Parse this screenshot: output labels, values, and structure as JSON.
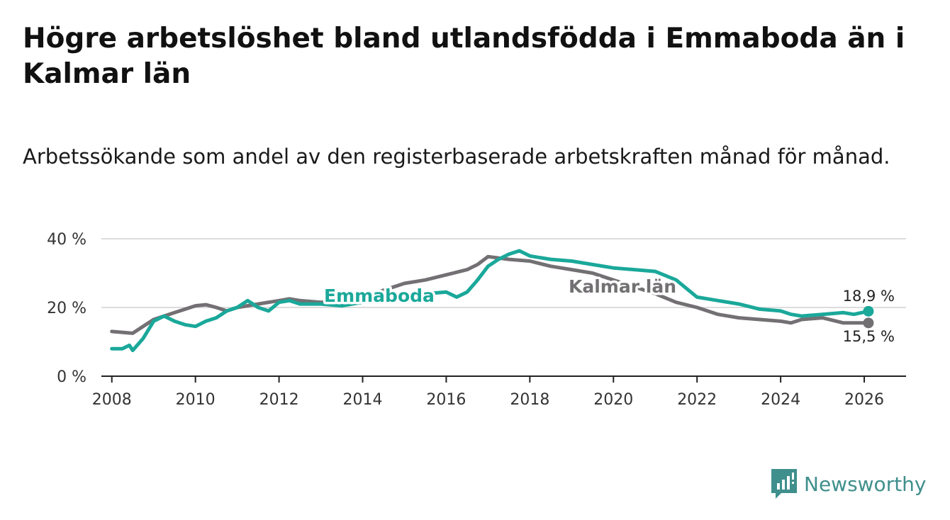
{
  "title": "Högre arbetslöshet bland utlandsfödda i Emmaboda än i Kalmar län",
  "subtitle": "Arbetssökande som andel av den registerbaserade arbetskraften månad för månad.",
  "brand": {
    "name": "Newsworthy",
    "icon": "newsworthy-logo-icon"
  },
  "colors": {
    "emmaboda": "#1aa89a",
    "kalmar": "#737073",
    "grid": "#dcdcdc",
    "axis": "#222222",
    "brand": "#3f8f8c"
  },
  "chart_data": {
    "type": "line",
    "title": "Högre arbetslöshet bland utlandsfödda i Emmaboda än i Kalmar län",
    "subtitle": "Arbetssökande som andel av den registerbaserade arbetskraften månad för månad.",
    "xlabel": "",
    "ylabel": "",
    "xlim": [
      2007.75,
      2027.0
    ],
    "ylim": [
      0,
      40
    ],
    "grid": true,
    "x_ticks": [
      2008,
      2010,
      2012,
      2014,
      2016,
      2018,
      2020,
      2022,
      2024,
      2026
    ],
    "x_tick_labels": [
      "2008",
      "2010",
      "2012",
      "2014",
      "2016",
      "2018",
      "2020",
      "2022",
      "2024",
      "2026"
    ],
    "y_ticks": [
      0,
      20,
      40
    ],
    "y_tick_labels": [
      "0 %",
      "20 %",
      "40 %"
    ],
    "series": [
      {
        "name": "Kalmar län",
        "label": "Kalmar län",
        "color": "#737073",
        "end_label": "15,5 %",
        "x": [
          2008.0,
          2008.5,
          2009.0,
          2009.5,
          2010.0,
          2010.25,
          2010.5,
          2010.75,
          2011.0,
          2011.5,
          2012.0,
          2012.25,
          2012.5,
          2013.0,
          2013.5,
          2014.0,
          2014.5,
          2015.0,
          2015.5,
          2016.0,
          2016.5,
          2016.75,
          2017.0,
          2017.5,
          2018.0,
          2018.5,
          2019.0,
          2019.5,
          2020.0,
          2020.5,
          2021.0,
          2021.5,
          2022.0,
          2022.5,
          2023.0,
          2023.5,
          2024.0,
          2024.25,
          2024.5,
          2025.0,
          2025.5,
          2026.1
        ],
        "values": [
          13.0,
          12.5,
          16.5,
          18.5,
          20.5,
          20.8,
          20.0,
          19.0,
          20.0,
          21.0,
          22.0,
          22.5,
          22.0,
          21.5,
          22.0,
          23.0,
          25.0,
          27.0,
          28.0,
          29.5,
          31.0,
          32.5,
          34.8,
          34.0,
          33.5,
          32.0,
          31.0,
          30.0,
          28.0,
          26.0,
          24.0,
          21.5,
          20.0,
          18.0,
          17.0,
          16.5,
          16.0,
          15.5,
          16.5,
          17.0,
          15.5,
          15.5
        ]
      },
      {
        "name": "Emmaboda",
        "label": "Emmaboda",
        "color": "#1aa89a",
        "end_label": "18,9 %",
        "x": [
          2008.0,
          2008.25,
          2008.42,
          2008.5,
          2008.75,
          2009.0,
          2009.25,
          2009.5,
          2009.75,
          2010.0,
          2010.25,
          2010.5,
          2010.75,
          2011.0,
          2011.25,
          2011.5,
          2011.75,
          2012.0,
          2012.25,
          2012.5,
          2013.0,
          2013.5,
          2014.0,
          2014.5,
          2015.0,
          2015.5,
          2016.0,
          2016.25,
          2016.5,
          2016.75,
          2017.0,
          2017.25,
          2017.5,
          2017.75,
          2018.0,
          2018.5,
          2019.0,
          2019.5,
          2020.0,
          2020.5,
          2021.0,
          2021.5,
          2022.0,
          2022.5,
          2023.0,
          2023.5,
          2024.0,
          2024.25,
          2024.5,
          2025.0,
          2025.5,
          2025.75,
          2026.1
        ],
        "values": [
          8.0,
          8.0,
          9.0,
          7.5,
          11.0,
          16.0,
          17.5,
          16.0,
          15.0,
          14.5,
          16.0,
          17.0,
          19.0,
          20.0,
          22.0,
          20.0,
          19.0,
          21.5,
          22.0,
          21.0,
          21.0,
          20.5,
          21.5,
          22.0,
          23.5,
          24.0,
          24.5,
          23.0,
          24.5,
          28.0,
          32.0,
          34.0,
          35.5,
          36.5,
          35.0,
          34.0,
          33.5,
          32.5,
          31.5,
          31.0,
          30.5,
          28.0,
          23.0,
          22.0,
          21.0,
          19.5,
          19.0,
          18.0,
          17.5,
          18.0,
          18.5,
          18.0,
          18.9
        ]
      }
    ]
  }
}
